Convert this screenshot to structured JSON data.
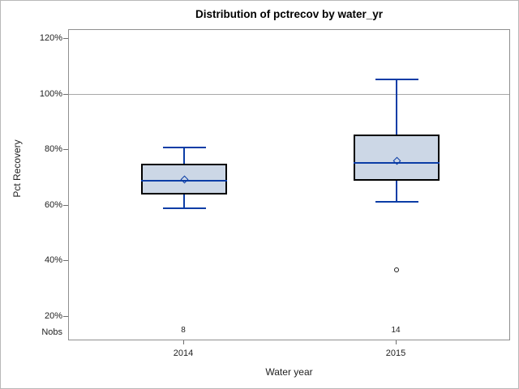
{
  "page": {
    "nobs_row_label": "Nobs"
  },
  "chart_data": {
    "type": "boxplot",
    "title": "Distribution of pctrecov by water_yr",
    "xlabel": "Water year",
    "ylabel": "Pct Recovery",
    "ylim": [
      11.2,
      123.2
    ],
    "y_ticks": [
      20,
      40,
      60,
      80,
      100,
      120
    ],
    "y_tick_suffix": "%",
    "reference_line": 100,
    "grid": false,
    "legend": "none",
    "categories": [
      "2014",
      "2015"
    ],
    "series": [
      {
        "category": "2014",
        "x_frac": 0.2606,
        "nobs": "8",
        "whisker_low": 59,
        "q1": 64,
        "median": 69,
        "q3": 75,
        "whisker_high": 81,
        "mean": 69.5,
        "outliers": []
      },
      {
        "category": "2015",
        "x_frac": 0.7413,
        "nobs": "14",
        "whisker_low": 61.5,
        "q1": 69,
        "median": 75.5,
        "q3": 85.5,
        "whisker_high": 105.5,
        "mean": 76,
        "outliers": [
          37
        ]
      }
    ],
    "colors": {
      "box_fill": "#ccd7e6",
      "box_border": "#000000",
      "line_blue": "#0b3da6",
      "reference_line": "#a8a8a8",
      "plot_border": "#8f8f8f",
      "outlier": "#1f1f1f",
      "tick_mark": "#6e6e6e",
      "text": "#222222"
    }
  }
}
